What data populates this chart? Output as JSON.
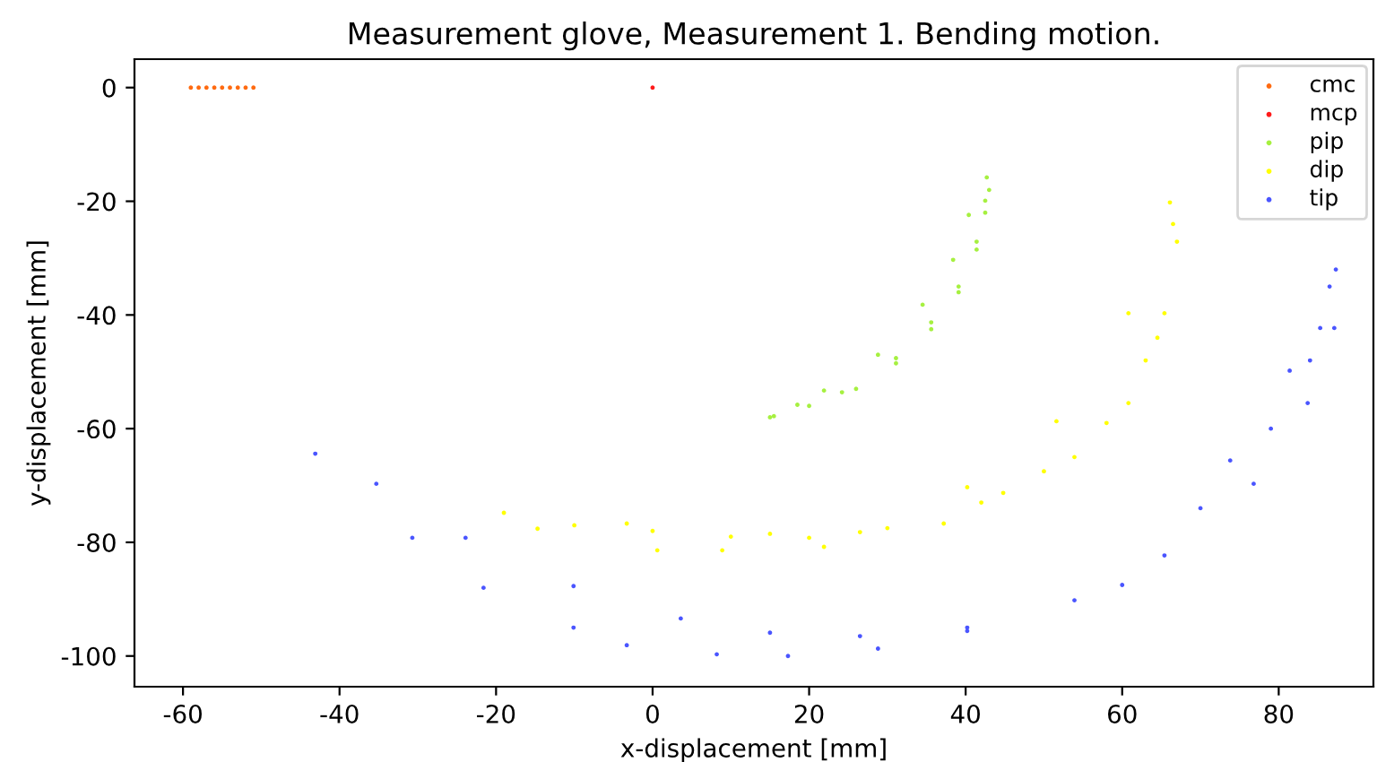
{
  "chart_data": {
    "type": "scatter",
    "title": "Measurement glove, Measurement 1. Bending motion.",
    "xlabel": "x-displacement [mm]",
    "ylabel": "y-displacement [mm]",
    "xlim": [
      -66.2,
      92.1
    ],
    "ylim": [
      -105.4,
      5.0
    ],
    "xticks": [
      -60,
      -40,
      -20,
      0,
      20,
      40,
      60,
      80
    ],
    "yticks": [
      -100,
      -80,
      -60,
      -40,
      -20,
      0
    ],
    "grid": false,
    "legend": "top right",
    "marker": "circle",
    "series": [
      {
        "name": "cmc",
        "color": "#ff6a10",
        "x": [
          -59,
          -58,
          -57,
          -56,
          -55,
          -54,
          -53,
          -52,
          -51
        ],
        "values": [
          0,
          0,
          0,
          0,
          0,
          0,
          0,
          0,
          0
        ]
      },
      {
        "name": "mcp",
        "color": "#ff1a1a",
        "x": [
          0
        ],
        "values": [
          0
        ]
      },
      {
        "name": "pip",
        "color": "#a6f040",
        "x": [
          15.0,
          18.5,
          21.9,
          24.2,
          28.8,
          31.1,
          34.5,
          35.6,
          38.4,
          39.1,
          40.4,
          41.4,
          42.5,
          42.7,
          43.0,
          42.5,
          41.4,
          39.1,
          35.6,
          31.1,
          26.0,
          20.0,
          15.5
        ],
        "values": [
          -58.0,
          -55.8,
          -53.3,
          -53.6,
          -47.0,
          -47.6,
          -38.2,
          -41.3,
          -30.3,
          -35.0,
          -22.4,
          -27.1,
          -19.9,
          -15.8,
          -18.0,
          -22.0,
          -28.5,
          -36.0,
          -42.5,
          -48.5,
          -53.0,
          -56.0,
          -57.8
        ]
      },
      {
        "name": "dip",
        "color": "#ffff00",
        "x": [
          -19.0,
          -14.7,
          -3.3,
          0.6,
          8.9,
          15.0,
          21.9,
          26.5,
          37.2,
          40.2,
          44.8,
          51.6,
          53.9,
          60.8,
          60.8,
          65.4,
          66.5,
          66.1,
          67.0,
          64.5,
          63.0,
          58.0,
          50.0,
          42.0,
          30.0,
          20.0,
          10.0,
          0.0,
          -10.0
        ],
        "values": [
          -74.8,
          -77.6,
          -76.7,
          -81.4,
          -81.4,
          -78.5,
          -80.8,
          -78.2,
          -76.7,
          -70.3,
          -71.3,
          -58.7,
          -65.0,
          -39.7,
          -55.5,
          -39.7,
          -24.0,
          -20.2,
          -27.1,
          -44.0,
          -48.0,
          -59.0,
          -67.5,
          -73.0,
          -77.5,
          -79.2,
          -79.0,
          -78.0,
          -77.0
        ]
      },
      {
        "name": "tip",
        "color": "#4a55ff",
        "x": [
          -43.1,
          -35.3,
          -30.7,
          -23.9,
          -21.6,
          -10.1,
          -10.1,
          -3.3,
          3.6,
          8.2,
          15.0,
          17.3,
          26.5,
          28.8,
          40.2,
          40.2,
          53.9,
          60.0,
          65.4,
          70.0,
          73.8,
          76.8,
          81.4,
          83.7,
          85.3,
          87.1,
          87.3,
          86.5,
          84.0,
          79.0
        ],
        "values": [
          -64.4,
          -69.7,
          -79.2,
          -79.2,
          -88.0,
          -87.7,
          -95.0,
          -98.1,
          -93.4,
          -99.7,
          -95.9,
          -100.0,
          -96.5,
          -98.7,
          -95.0,
          -95.6,
          -90.2,
          -87.5,
          -82.3,
          -74.0,
          -65.6,
          -69.7,
          -49.8,
          -55.5,
          -42.3,
          -42.3,
          -32.0,
          -35.0,
          -48.0,
          -60.0
        ]
      }
    ]
  }
}
